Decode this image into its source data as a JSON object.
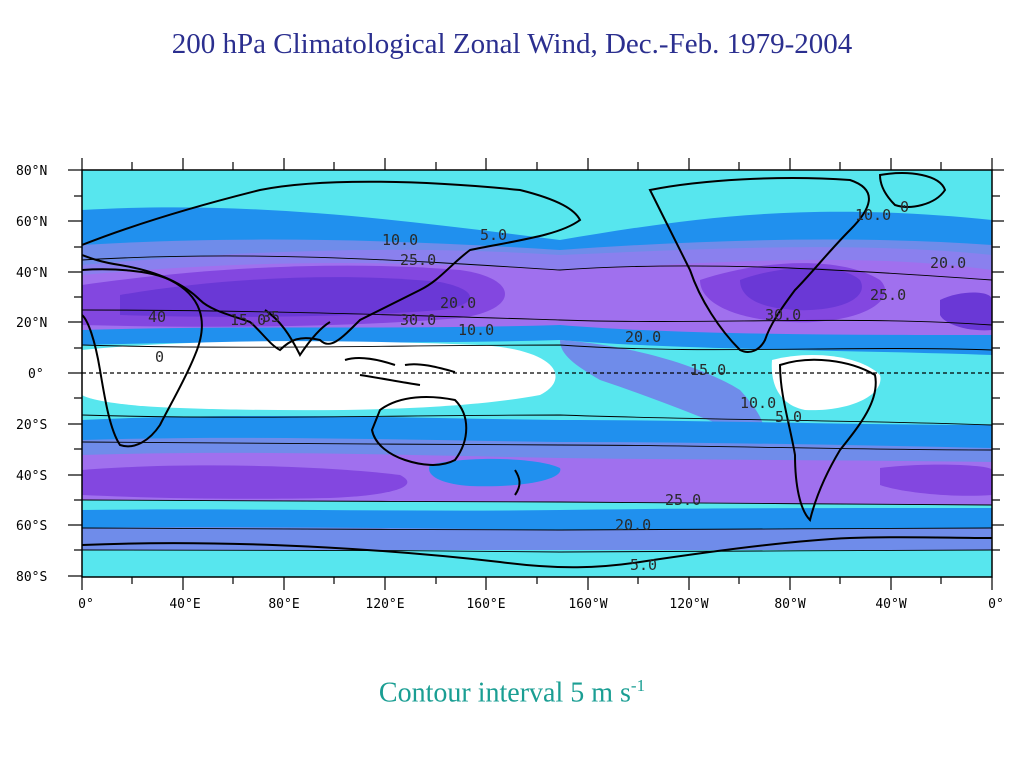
{
  "title": "200 hPa Climatological Zonal Wind, Dec.-Feb. 1979-2004",
  "caption": {
    "prefix": "Contour interval 5 m s",
    "superscript": "-1"
  },
  "map": {
    "lat_ticks": [
      "80°N",
      "60°N",
      "40°N",
      "20°N",
      "0°",
      "20°S",
      "40°S",
      "60°S",
      "80°S"
    ],
    "lon_ticks": [
      "0°",
      "40°E",
      "80°E",
      "120°E",
      "160°E",
      "160°W",
      "120°W",
      "80°W",
      "40°W",
      "0°"
    ],
    "colors": {
      "cyan": "#57e6ee",
      "blue": "#2090ee",
      "slate": "#6f8cea",
      "periwinkle": "#8a80ee",
      "violet": "#a070ee",
      "purple": "#8347e0",
      "deep": "#6a38d6",
      "white": "#ffffff"
    },
    "contour_labels": [
      "10.0",
      "5.0",
      "25.0",
      "20.0",
      "30.0",
      "15.0",
      "10.0",
      "0",
      "20.0",
      "10.0",
      "30.0",
      "25.0",
      "20.0",
      "15.0",
      "10.0",
      "5.0",
      "5.0",
      "25.0",
      "20.0",
      "40",
      "35",
      "0"
    ]
  }
}
